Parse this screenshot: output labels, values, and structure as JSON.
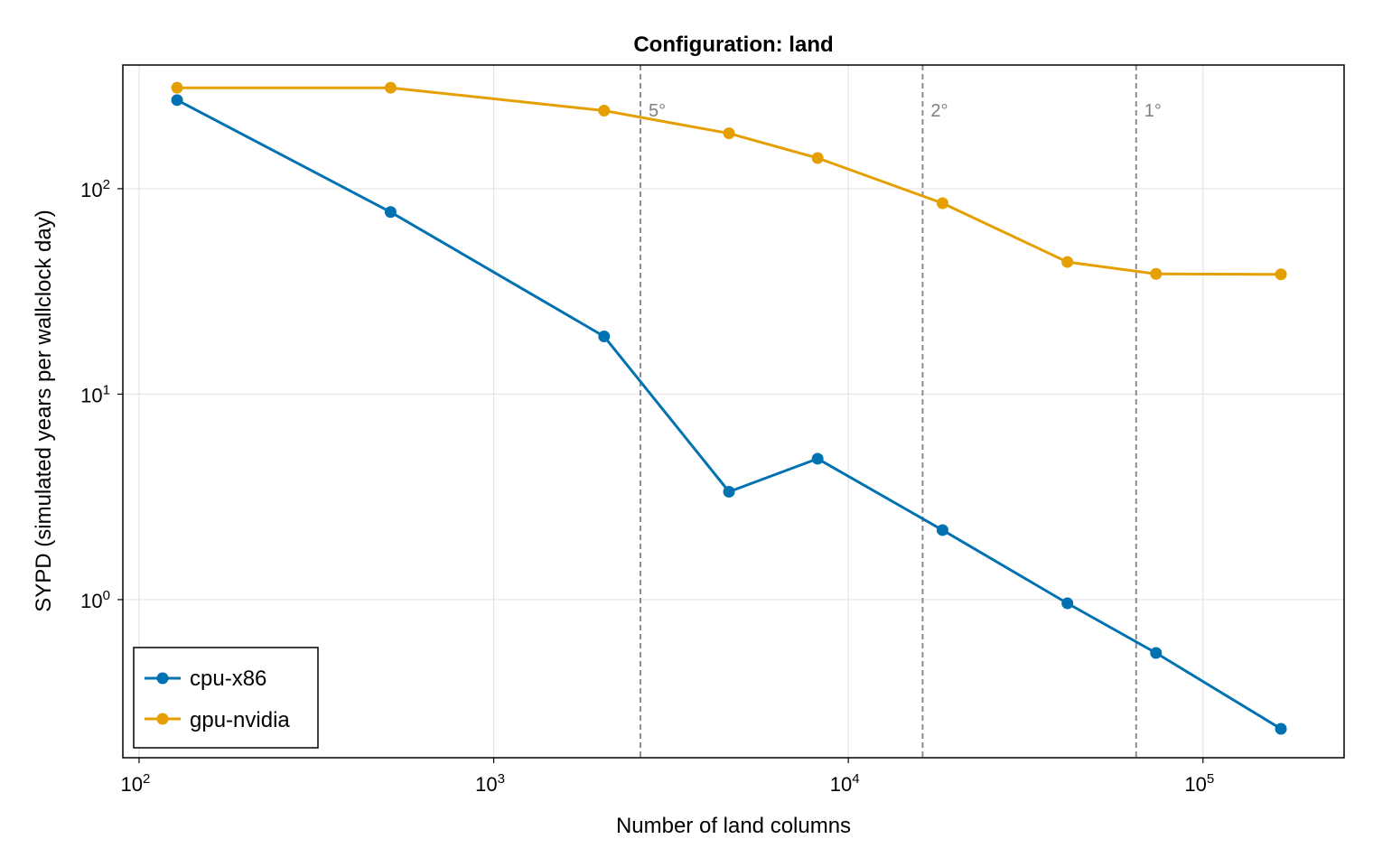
{
  "chart_data": {
    "type": "line",
    "title": "Configuration: land",
    "xlabel": "Number of land columns",
    "ylabel": "SYPD (simulated years per wallclock day)",
    "xscale": "log",
    "yscale": "log",
    "xlim": [
      90,
      250000
    ],
    "ylim": [
      0.17,
      400
    ],
    "x_ticks": [
      {
        "value": 100,
        "base": "10",
        "exp": "2"
      },
      {
        "value": 1000,
        "base": "10",
        "exp": "3"
      },
      {
        "value": 10000,
        "base": "10",
        "exp": "4"
      },
      {
        "value": 100000,
        "base": "10",
        "exp": "5"
      }
    ],
    "y_ticks": [
      {
        "value": 1,
        "base": "10",
        "exp": "0"
      },
      {
        "value": 10,
        "base": "10",
        "exp": "1"
      },
      {
        "value": 100,
        "base": "10",
        "exp": "2"
      }
    ],
    "grid": true,
    "legend_position": "bottom-left",
    "reference_lines": [
      {
        "x": 2592,
        "label": "5°"
      },
      {
        "x": 16200,
        "label": "2°"
      },
      {
        "x": 64800,
        "label": "1°"
      }
    ],
    "series": [
      {
        "name": "cpu-x86",
        "color": "#0072b2",
        "x": [
          128,
          512,
          2048,
          4608,
          8192,
          18432,
          41472,
          73728,
          165888
        ],
        "y": [
          270,
          77,
          19.1,
          3.35,
          4.85,
          2.18,
          0.96,
          0.55,
          0.235
        ]
      },
      {
        "name": "gpu-nvidia",
        "color": "#e69f00",
        "x": [
          128,
          512,
          2048,
          4608,
          8192,
          18432,
          41472,
          73728,
          165888
        ],
        "y": [
          310,
          310,
          240,
          186,
          141,
          85,
          44,
          38.5,
          38.3
        ]
      }
    ]
  }
}
